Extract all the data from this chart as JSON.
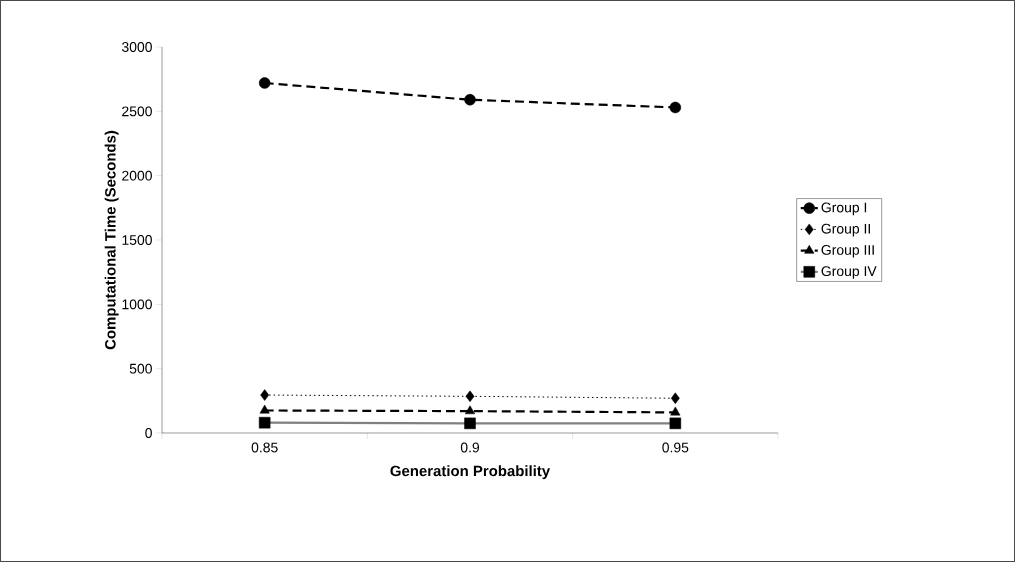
{
  "chart_data": {
    "type": "line",
    "xlabel": "Generation Probability",
    "ylabel": "Computational Time (Seconds)",
    "categories": [
      "0.85",
      "0.9",
      "0.95"
    ],
    "series": [
      {
        "name": "Group I",
        "color": "#000000",
        "marker": "circle",
        "line_style": "dashed",
        "values": [
          2720,
          2590,
          2530
        ]
      },
      {
        "name": "Group II",
        "color": "#000000",
        "marker": "diamond",
        "line_style": "dotted",
        "values": [
          295,
          285,
          270
        ]
      },
      {
        "name": "Group III",
        "color": "#000000",
        "marker": "triangle",
        "line_style": "dashed",
        "values": [
          175,
          170,
          160
        ]
      },
      {
        "name": "Group IV",
        "color": "#808080",
        "marker": "square",
        "line_style": "solid",
        "values": [
          80,
          75,
          75
        ]
      }
    ],
    "ylim": [
      0,
      3000
    ],
    "yticks": [
      0,
      500,
      1000,
      1500,
      2000,
      2500,
      3000
    ],
    "grid": false,
    "legend": "right"
  }
}
